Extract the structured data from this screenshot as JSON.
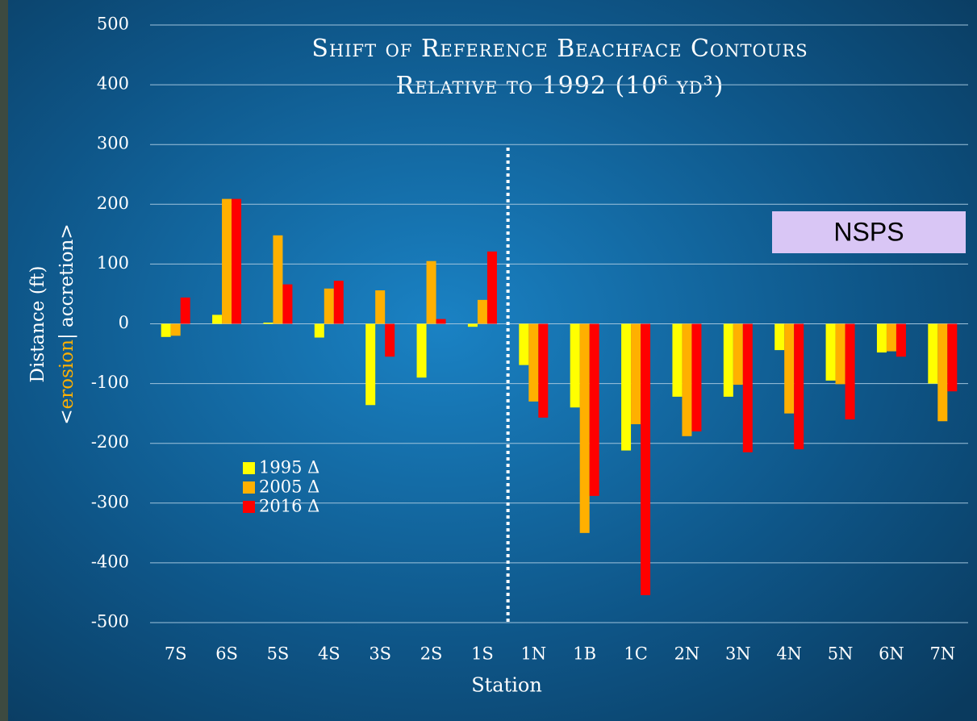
{
  "chart_data": {
    "type": "bar",
    "title": "Shift of Reference Beachface Contours",
    "subtitle": "Relative to 1992 (10⁶ yd³)",
    "y_label": "Distance (ft)",
    "y_label_parts": [
      "<",
      "erosion",
      "| accretion>"
    ],
    "x_label": "Station",
    "annotation": "NSPS",
    "categories": [
      "7S",
      "6S",
      "5S",
      "4S",
      "3S",
      "2S",
      "1S",
      "1N",
      "1B",
      "1C",
      "2N",
      "3N",
      "4N",
      "5N",
      "6N",
      "7N"
    ],
    "series": [
      {
        "name": "1995 Δ",
        "color": "#ffff00",
        "values": [
          -22,
          15,
          2,
          -23,
          -136,
          -90,
          -5,
          -69,
          -140,
          -212,
          -122,
          -122,
          -44,
          -95,
          -48,
          -100
        ]
      },
      {
        "name": "2005 Δ",
        "color": "#ffb000",
        "values": [
          -20,
          209,
          148,
          59,
          56,
          105,
          40,
          -130,
          -350,
          -168,
          -188,
          -102,
          -150,
          -101,
          -46,
          -163
        ]
      },
      {
        "name": "2016 Δ",
        "color": "#ff0000",
        "values": [
          44,
          209,
          66,
          72,
          -55,
          8,
          121,
          -157,
          -288,
          -454,
          -180,
          -215,
          -210,
          -160,
          -55,
          -113
        ]
      }
    ],
    "ylim": [
      -500,
      500
    ],
    "yticks": [
      -500,
      -400,
      -300,
      -200,
      -100,
      0,
      100,
      200,
      300,
      400,
      500
    ],
    "grid": true
  }
}
